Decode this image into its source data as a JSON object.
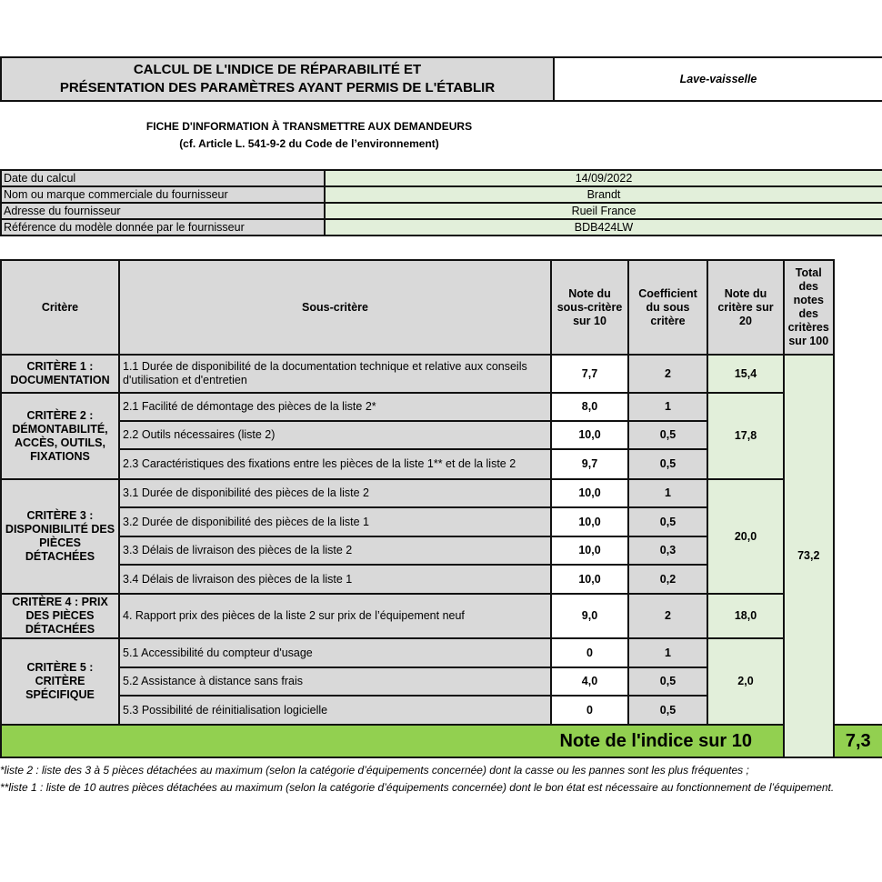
{
  "header": {
    "title_line1": "CALCUL DE L'INDICE DE RÉPARABILITÉ ET",
    "title_line2": "PRÉSENTATION DES PARAMÈTRES AYANT PERMIS DE L'ÉTABLIR",
    "product_type": "Lave-vaisselle"
  },
  "subtitle": {
    "line1": "FICHE D'INFORMATION À TRANSMETTRE AUX DEMANDEURS",
    "line2": "(cf. Article L. 541-9-2 du Code de l’environnement)"
  },
  "info": [
    {
      "label": "Date du calcul",
      "value": "14/09/2022"
    },
    {
      "label": "Nom ou marque commerciale du fournisseur",
      "value": "Brandt"
    },
    {
      "label": "Adresse du fournisseur",
      "value": "Rueil France"
    },
    {
      "label": "Référence du modèle donnée par le fournisseur",
      "value": "BDB424LW"
    }
  ],
  "columns": [
    "Critère",
    "Sous-critère",
    "Note du sous-critère sur 10",
    "Coefficient du sous critère",
    "Note du critère sur 20",
    "Total des notes des critères sur 100"
  ],
  "criteria": [
    {
      "name": "CRITÈRE 1 : DOCUMENTATION",
      "score20": "15,4",
      "subs": [
        {
          "label": "1.1 Durée de disponibilité de la documentation technique et relative aux conseils d'utilisation et d'entretien",
          "note": "7,7",
          "coef": "2"
        }
      ]
    },
    {
      "name": "CRITÈRE 2 : DÉMONTABILITÉ, ACCÈS, OUTILS, FIXATIONS",
      "score20": "17,8",
      "subs": [
        {
          "label": "2.1 Facilité de démontage des pièces de la liste 2*",
          "note": "8,0",
          "coef": "1"
        },
        {
          "label": "2.2 Outils nécessaires (liste 2)",
          "note": "10,0",
          "coef": "0,5"
        },
        {
          "label": "2.3 Caractéristiques des fixations entre les pièces de la liste 1** et de la liste 2",
          "note": "9,7",
          "coef": "0,5"
        }
      ]
    },
    {
      "name": "CRITÈRE 3 : DISPONIBILITÉ DES PIÈCES DÉTACHÉES",
      "score20": "20,0",
      "subs": [
        {
          "label": "3.1 Durée de disponibilité des pièces de la liste 2",
          "note": "10,0",
          "coef": "1"
        },
        {
          "label": "3.2 Durée de disponibilité des pièces de la liste 1",
          "note": "10,0",
          "coef": "0,5"
        },
        {
          "label": "3.3 Délais de livraison des pièces de la liste 2",
          "note": "10,0",
          "coef": "0,3"
        },
        {
          "label": "3.4 Délais de livraison des pièces de la liste 1",
          "note": "10,0",
          "coef": "0,2"
        }
      ]
    },
    {
      "name": "CRITÈRE 4 : PRIX DES PIÈCES DÉTACHÉES",
      "score20": "18,0",
      "subs": [
        {
          "label": "4. Rapport prix des pièces de la liste 2 sur prix de l’équipement neuf",
          "note": "9,0",
          "coef": "2"
        }
      ]
    },
    {
      "name": "CRITÈRE 5 : CRITÈRE SPÉCIFIQUE",
      "score20": "2,0",
      "subs": [
        {
          "label": "5.1 Accessibilité du compteur d'usage",
          "note": "0",
          "coef": "1"
        },
        {
          "label": "5.2 Assistance à distance sans frais",
          "note": "4,0",
          "coef": "0,5"
        },
        {
          "label": "5.3 Possibilité de réinitialisation logicielle",
          "note": "0",
          "coef": "0,5"
        }
      ]
    }
  ],
  "total100": "73,2",
  "final": {
    "label": "Note de l'indice sur 10",
    "value": "7,3"
  },
  "footnotes": [
    "*liste 2 : liste des 3 à 5 pièces détachées au maximum (selon la catégorie d’équipements concernée) dont la casse ou les pannes sont les plus fréquentes ;",
    "**liste 1 : liste de 10 autres pièces détachées au maximum (selon la catégorie d’équipements concernée) dont le bon état est nécessaire au fonctionnement de l’équipement."
  ],
  "colors": {
    "gray": "#d9d9d9",
    "light_green": "#e2efda",
    "green": "#92d050"
  }
}
